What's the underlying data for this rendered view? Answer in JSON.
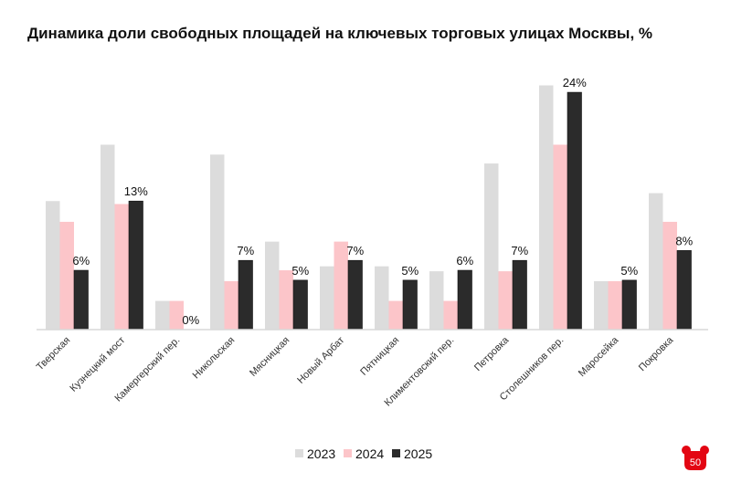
{
  "title": "Динамика доли свободных площадей на ключевых торговых улицах Москвы, %",
  "chart_data": {
    "type": "bar",
    "title": "Динамика доли свободных площадей на ключевых торговых улицах Москвы, %",
    "xlabel": "",
    "ylabel": "",
    "ylim": [
      0,
      25
    ],
    "grid": false,
    "legend": "bottom",
    "categories": [
      "Тверская",
      "Кузнецкий мост",
      "Камергерский пер.",
      "Никольская",
      "Мясницкая",
      "Новый Арбат",
      "Пятницкая",
      "Климентовский пер.",
      "Петровка",
      "Столешников пер.",
      "Маросейка",
      "Покровка"
    ],
    "series": [
      {
        "name": "2023",
        "color": "#dcdcdc",
        "values": [
          13,
          18.7,
          2.9,
          17.7,
          8.9,
          6.4,
          6.4,
          5.9,
          16.8,
          24.7,
          4.9,
          13.8
        ]
      },
      {
        "name": "2024",
        "color": "#fcc5c9",
        "values": [
          10.9,
          12.7,
          2.9,
          4.9,
          6,
          8.9,
          2.9,
          2.9,
          5.9,
          18.7,
          4.9,
          10.9
        ]
      },
      {
        "name": "2025",
        "color": "#2b2b2b",
        "values": [
          6,
          13,
          0,
          7,
          5,
          7,
          5,
          6,
          7,
          24,
          5,
          8
        ],
        "labels": [
          "6%",
          "13%",
          "0%",
          "7%",
          "5%",
          "7%",
          "5%",
          "6%",
          "7%",
          "24%",
          "5%",
          "8%"
        ]
      }
    ]
  },
  "logo": {
    "text": "50",
    "color": "#e30613"
  }
}
